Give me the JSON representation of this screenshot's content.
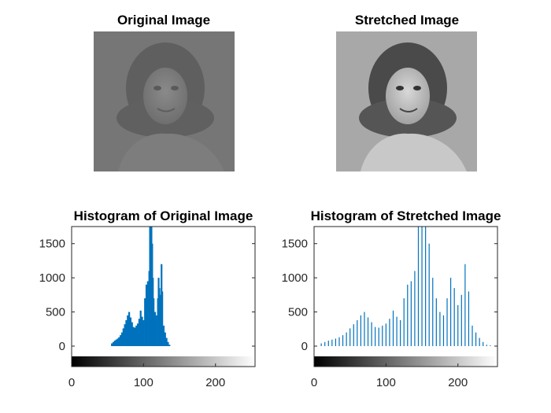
{
  "panels": {
    "original_image": {
      "title": "Original Image"
    },
    "stretched_image": {
      "title": "Stretched Image"
    }
  },
  "chart_data": [
    {
      "type": "bar",
      "title": "Histogram of Original Image",
      "xlabel": "",
      "ylabel": "",
      "xlim": [
        0,
        255
      ],
      "ylim": [
        -150,
        1750
      ],
      "xticks": [
        0,
        100,
        200
      ],
      "yticks": [
        0,
        500,
        1000,
        1500
      ],
      "grid": false,
      "colorbar": "grayscale",
      "bar_color": "#0072BD",
      "x": [
        56,
        58,
        60,
        62,
        64,
        66,
        68,
        70,
        72,
        74,
        76,
        78,
        80,
        82,
        84,
        86,
        88,
        90,
        92,
        94,
        96,
        98,
        100,
        102,
        104,
        106,
        108,
        109,
        110,
        111,
        112,
        113,
        114,
        116,
        118,
        120,
        121,
        122,
        123,
        124,
        125,
        126,
        128,
        130,
        132,
        134,
        136
      ],
      "values": [
        40,
        60,
        80,
        95,
        110,
        130,
        160,
        200,
        260,
        320,
        380,
        450,
        500,
        420,
        350,
        280,
        270,
        300,
        330,
        400,
        520,
        430,
        380,
        700,
        900,
        950,
        1100,
        1750,
        1750,
        1750,
        1500,
        1000,
        700,
        500,
        450,
        700,
        1000,
        850,
        600,
        750,
        1200,
        800,
        300,
        200,
        120,
        60,
        20
      ]
    },
    {
      "type": "bar",
      "title": "Histogram of Stretched Image",
      "xlabel": "",
      "ylabel": "",
      "xlim": [
        0,
        255
      ],
      "ylim": [
        -150,
        1750
      ],
      "xticks": [
        0,
        100,
        200
      ],
      "yticks": [
        0,
        500,
        1000,
        1500
      ],
      "grid": false,
      "colorbar": "grayscale",
      "bar_color": "#0072BD",
      "x": [
        10,
        15,
        20,
        25,
        30,
        35,
        40,
        45,
        50,
        55,
        60,
        65,
        70,
        75,
        80,
        85,
        90,
        95,
        100,
        105,
        110,
        115,
        120,
        125,
        130,
        135,
        140,
        145,
        150,
        155,
        160,
        165,
        170,
        175,
        180,
        185,
        190,
        195,
        200,
        205,
        210,
        215,
        220,
        225,
        230,
        235,
        240,
        245
      ],
      "values": [
        40,
        60,
        80,
        95,
        110,
        130,
        160,
        200,
        260,
        320,
        380,
        450,
        500,
        420,
        350,
        280,
        270,
        300,
        330,
        400,
        520,
        430,
        380,
        700,
        900,
        950,
        1100,
        1750,
        1750,
        1750,
        1500,
        1000,
        700,
        500,
        450,
        700,
        1000,
        850,
        600,
        750,
        1200,
        800,
        300,
        200,
        120,
        60,
        20,
        10
      ]
    }
  ]
}
